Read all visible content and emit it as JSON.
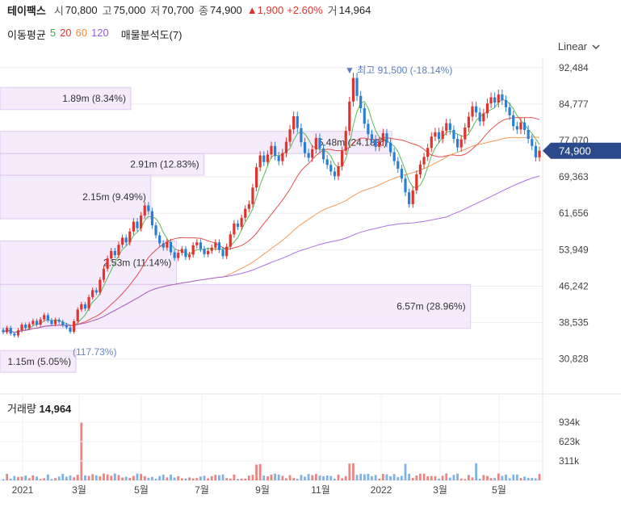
{
  "header": {
    "name": "테이팩스",
    "open_label": "시",
    "open": "70,800",
    "high_label": "고",
    "high": "75,000",
    "low_label": "저",
    "low": "70,700",
    "close_label": "종",
    "close": "74,900",
    "change": "▲1,900",
    "change_pct": "+2.60%",
    "volume_label": "거",
    "volume": "14,964"
  },
  "indicators": {
    "ma_label": "이동평균",
    "ma": [
      {
        "period": "5",
        "color": "#3cae3c"
      },
      {
        "period": "20",
        "color": "#e0332e"
      },
      {
        "period": "60",
        "color": "#f08a3c"
      },
      {
        "period": "120",
        "color": "#9b59e0"
      }
    ],
    "vp_label": "매물분석도(7)"
  },
  "scale_button": "Linear",
  "volume_panel": {
    "label": "거래량",
    "value": "14,964"
  },
  "colors": {
    "up": "#e0332e",
    "down": "#2a7fd4",
    "price_tag": "#2b4a8b",
    "vp_fill": "#f3e8fb",
    "vp_border": "#dcc3ef"
  },
  "chart_data": {
    "type": "candlestick",
    "y_ticks": [
      "92,484",
      "84,777",
      "77,070",
      "69,363",
      "61,656",
      "53,949",
      "46,242",
      "38,535",
      "30,828"
    ],
    "x_ticks": [
      "2021",
      "3월",
      "5월",
      "7월",
      "9월",
      "11월",
      "2022",
      "3월",
      "5월"
    ],
    "y_range": [
      26500,
      94500
    ],
    "current_price": "74,900",
    "max_annotation": "▼ 최고 91,500 (-18.14%)",
    "min_annotation": "(117.73%)",
    "volume_ticks": [
      "934k",
      "623k",
      "311k"
    ],
    "volume_profile": [
      {
        "label": "1.89m (8.34%)",
        "low": 83600,
        "high": 88300,
        "width": 0.241
      },
      {
        "label": "5.48m (24.18%)",
        "low": 74300,
        "high": 79000,
        "width": 0.722
      },
      {
        "label": "2.91m (12.83%)",
        "low": 69700,
        "high": 74300,
        "width": 0.376
      },
      {
        "label": "2.15m (9.49%)",
        "low": 60500,
        "high": 69700,
        "width": 0.278
      },
      {
        "label": "2.53m (11.14%)",
        "low": 46600,
        "high": 55800,
        "width": 0.325
      },
      {
        "label": "6.57m (28.96%)",
        "low": 37300,
        "high": 46600,
        "width": 0.867
      },
      {
        "label": "1.15m (5.05%)",
        "low": 28000,
        "high": 32600,
        "width": 0.14
      }
    ],
    "candles": [
      [
        37000,
        36500
      ],
      [
        36500,
        37400
      ],
      [
        37400,
        36200
      ],
      [
        36200,
        35800
      ],
      [
        35800,
        36900
      ],
      [
        36900,
        38100
      ],
      [
        38100,
        37400
      ],
      [
        37400,
        38200
      ],
      [
        38200,
        38900
      ],
      [
        38900,
        38100
      ],
      [
        38100,
        39200
      ],
      [
        39200,
        40100
      ],
      [
        40100,
        39000
      ],
      [
        39000,
        38200
      ],
      [
        38200,
        39100
      ],
      [
        39100,
        38700
      ],
      [
        38700,
        38000
      ],
      [
        38000,
        37500
      ],
      [
        37500,
        36600
      ],
      [
        36600,
        38800
      ],
      [
        38800,
        41300
      ],
      [
        41300,
        42400
      ],
      [
        42400,
        41500
      ],
      [
        41500,
        43900
      ],
      [
        43900,
        45400
      ],
      [
        45400,
        44900
      ],
      [
        44900,
        47600
      ],
      [
        47600,
        49900
      ],
      [
        49900,
        52100
      ],
      [
        52100,
        53700
      ],
      [
        53700,
        52800
      ],
      [
        52800,
        55000
      ],
      [
        55000,
        56500
      ],
      [
        56500,
        55500
      ],
      [
        55500,
        57800
      ],
      [
        57800,
        59900
      ],
      [
        59900,
        58500
      ],
      [
        58500,
        61200
      ],
      [
        61200,
        63300
      ],
      [
        63300,
        62100
      ],
      [
        62100,
        59100
      ],
      [
        59100,
        57000
      ],
      [
        57000,
        55300
      ],
      [
        55300,
        54400
      ],
      [
        54400,
        55600
      ],
      [
        55600,
        53400
      ],
      [
        53400,
        52200
      ],
      [
        52200,
        53300
      ],
      [
        53300,
        54100
      ],
      [
        54100,
        52400
      ],
      [
        52400,
        52900
      ],
      [
        52900,
        54900
      ],
      [
        54900,
        55500
      ],
      [
        55500,
        54100
      ],
      [
        54100,
        53000
      ],
      [
        53000,
        53700
      ],
      [
        53700,
        54400
      ],
      [
        54400,
        55500
      ],
      [
        55500,
        53900
      ],
      [
        53900,
        52600
      ],
      [
        52600,
        54600
      ],
      [
        54600,
        57200
      ],
      [
        57200,
        59500
      ],
      [
        59500,
        58800
      ],
      [
        58800,
        60700
      ],
      [
        60700,
        62600
      ],
      [
        62600,
        63600
      ],
      [
        63600,
        67100
      ],
      [
        67100,
        71400
      ],
      [
        71400,
        73900
      ],
      [
        73900,
        72500
      ],
      [
        72500,
        74100
      ],
      [
        74100,
        75900
      ],
      [
        75900,
        73800
      ],
      [
        73800,
        72700
      ],
      [
        72700,
        74400
      ],
      [
        74400,
        76800
      ],
      [
        76800,
        79400
      ],
      [
        79400,
        82200
      ],
      [
        82200,
        79700
      ],
      [
        79700,
        76700
      ],
      [
        76700,
        74400
      ],
      [
        74400,
        73400
      ],
      [
        73400,
        75200
      ],
      [
        75200,
        77600
      ],
      [
        77600,
        75400
      ],
      [
        75400,
        73100
      ],
      [
        73100,
        71900
      ],
      [
        71900,
        70500
      ],
      [
        70500,
        69500
      ],
      [
        69500,
        71600
      ],
      [
        71600,
        74900
      ],
      [
        74900,
        79100
      ],
      [
        79100,
        85300
      ],
      [
        85300,
        90300
      ],
      [
        90300,
        86500
      ],
      [
        86500,
        83900
      ],
      [
        83900,
        80600
      ],
      [
        80600,
        78400
      ],
      [
        78400,
        77300
      ],
      [
        77300,
        75700
      ],
      [
        75700,
        76800
      ],
      [
        76800,
        78600
      ],
      [
        78600,
        76600
      ],
      [
        76600,
        74600
      ],
      [
        74600,
        72700
      ],
      [
        72700,
        71100
      ],
      [
        71100,
        69000
      ],
      [
        69000,
        66100
      ],
      [
        66100,
        63600
      ],
      [
        63600,
        66500
      ],
      [
        66500,
        69900
      ],
      [
        69900,
        72000
      ],
      [
        72000,
        73600
      ],
      [
        73600,
        75500
      ],
      [
        75500,
        77900
      ],
      [
        77900,
        78800
      ],
      [
        78800,
        77400
      ],
      [
        77400,
        79100
      ],
      [
        79100,
        80700
      ],
      [
        80700,
        79300
      ],
      [
        79300,
        77400
      ],
      [
        77400,
        75600
      ],
      [
        75600,
        77300
      ],
      [
        77300,
        79800
      ],
      [
        79800,
        82100
      ],
      [
        82100,
        84300
      ],
      [
        84300,
        83000
      ],
      [
        83000,
        81100
      ],
      [
        81100,
        82800
      ],
      [
        82800,
        84900
      ],
      [
        84900,
        86200
      ],
      [
        86200,
        85100
      ],
      [
        85100,
        86800
      ],
      [
        86800,
        85600
      ],
      [
        85600,
        84100
      ],
      [
        84100,
        82400
      ],
      [
        82400,
        80100
      ],
      [
        80100,
        79400
      ],
      [
        79400,
        80900
      ],
      [
        80900,
        79300
      ],
      [
        79300,
        77400
      ],
      [
        77400,
        75900
      ],
      [
        75900,
        73500
      ],
      [
        73500,
        74900
      ]
    ]
  }
}
